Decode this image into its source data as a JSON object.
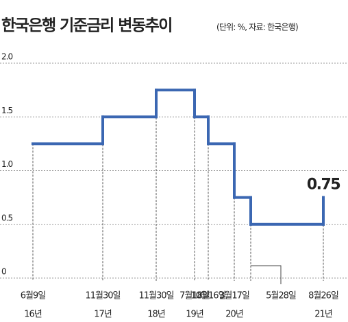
{
  "chart_data": {
    "type": "step",
    "title": "한국은행 기준금리 변동추이",
    "subtitle": "(단위: %, 자료: 한국은행)",
    "categories": [
      "6월9일",
      "11월30일",
      "11월30일",
      "7월18일",
      "10월16일",
      "3월17일",
      "5월28일",
      "8월26일"
    ],
    "years": [
      "16년",
      "17년",
      "18년",
      "19년",
      null,
      "20년",
      null,
      "21년"
    ],
    "values": [
      1.25,
      1.5,
      1.75,
      1.5,
      1.25,
      0.75,
      0.5,
      0.75
    ],
    "color": "#3b67b2",
    "ylim": [
      0,
      2
    ],
    "yticks": [
      0,
      0.5,
      {
        "value": 1,
        "label": "1.0"
      },
      1.5,
      {
        "value": 2,
        "label": "2.0"
      }
    ],
    "grid": true
  }
}
